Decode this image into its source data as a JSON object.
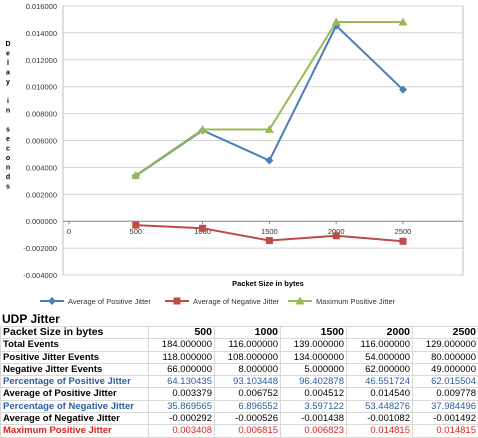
{
  "chart_data": {
    "type": "line",
    "xlabel": "Packet Size in bytes",
    "ylabel": "Delay in seconds",
    "ylim": [
      -0.004,
      0.016
    ],
    "yticks": [
      "0.016000",
      "0.014000",
      "0.012000",
      "0.010000",
      "0.008000",
      "0.006000",
      "0.004000",
      "0.002000",
      "0.000000",
      "-0.002000",
      "-0.004000"
    ],
    "xlim": [
      0,
      2500
    ],
    "xticks": [
      "0",
      "500",
      "1000",
      "1500",
      "2000",
      "2500"
    ],
    "grid": true,
    "legend_position": "bottom",
    "x": [
      500,
      1000,
      1500,
      2000,
      2500
    ],
    "series": [
      {
        "name": "Average of Positive Jitter",
        "color": "#4a7ebb",
        "marker": "diamond",
        "values": [
          0.003379,
          0.006752,
          0.004512,
          0.01454,
          0.009778
        ]
      },
      {
        "name": "Average of Negative Jitter",
        "color": "#be4b48",
        "marker": "square",
        "values": [
          -0.000292,
          -0.000526,
          -0.001438,
          -0.001082,
          -0.001492
        ]
      },
      {
        "name": "Maximum Positive Jitter",
        "color": "#98b954",
        "marker": "triangle",
        "values": [
          0.003408,
          0.006815,
          0.006823,
          0.014815,
          0.014815
        ]
      }
    ]
  },
  "table": {
    "title": "UDP Jitter",
    "header": [
      "Packet Size in bytes",
      "500",
      "1000",
      "1500",
      "2000",
      "2500"
    ],
    "rows": [
      {
        "label": "Total Events",
        "color": "#000000",
        "values": [
          "184.000000",
          "116.000000",
          "139.000000",
          "116.000000",
          "129.000000"
        ]
      },
      {
        "label": "Positive Jitter Events",
        "color": "#000000",
        "values": [
          "118.000000",
          "108.000000",
          "134.000000",
          "54.000000",
          "80.000000"
        ]
      },
      {
        "label": "Negative Jitter Events",
        "color": "#000000",
        "values": [
          "66.000000",
          "8.000000",
          "5.000000",
          "62.000000",
          "49.000000"
        ]
      },
      {
        "label": "Percentage of Positive Jitter",
        "color": "#2e5d9e",
        "values": [
          "64.130435",
          "93.103448",
          "96.402878",
          "46.551724",
          "62.015504"
        ]
      },
      {
        "label": "Average of Positive Jitter",
        "color": "#000000",
        "values": [
          "0.003379",
          "0.006752",
          "0.004512",
          "0.014540",
          "0.009778"
        ]
      },
      {
        "label": "Percentage of Negative Jitter",
        "color": "#2e5d9e",
        "values": [
          "35.869565",
          "6.896552",
          "3.597122",
          "53.448276",
          "37.984496"
        ]
      },
      {
        "label": "Average of Negative Jitter",
        "color": "#000000",
        "values": [
          "-0.000292",
          "-0.000526",
          "-0.001438",
          "-0.001082",
          "-0.001492"
        ]
      },
      {
        "label": "Maximum Positive Jitter",
        "color": "#e02020",
        "values": [
          "0.003408",
          "0.006815",
          "0.006823",
          "0.014815",
          "0.014815"
        ]
      }
    ]
  }
}
